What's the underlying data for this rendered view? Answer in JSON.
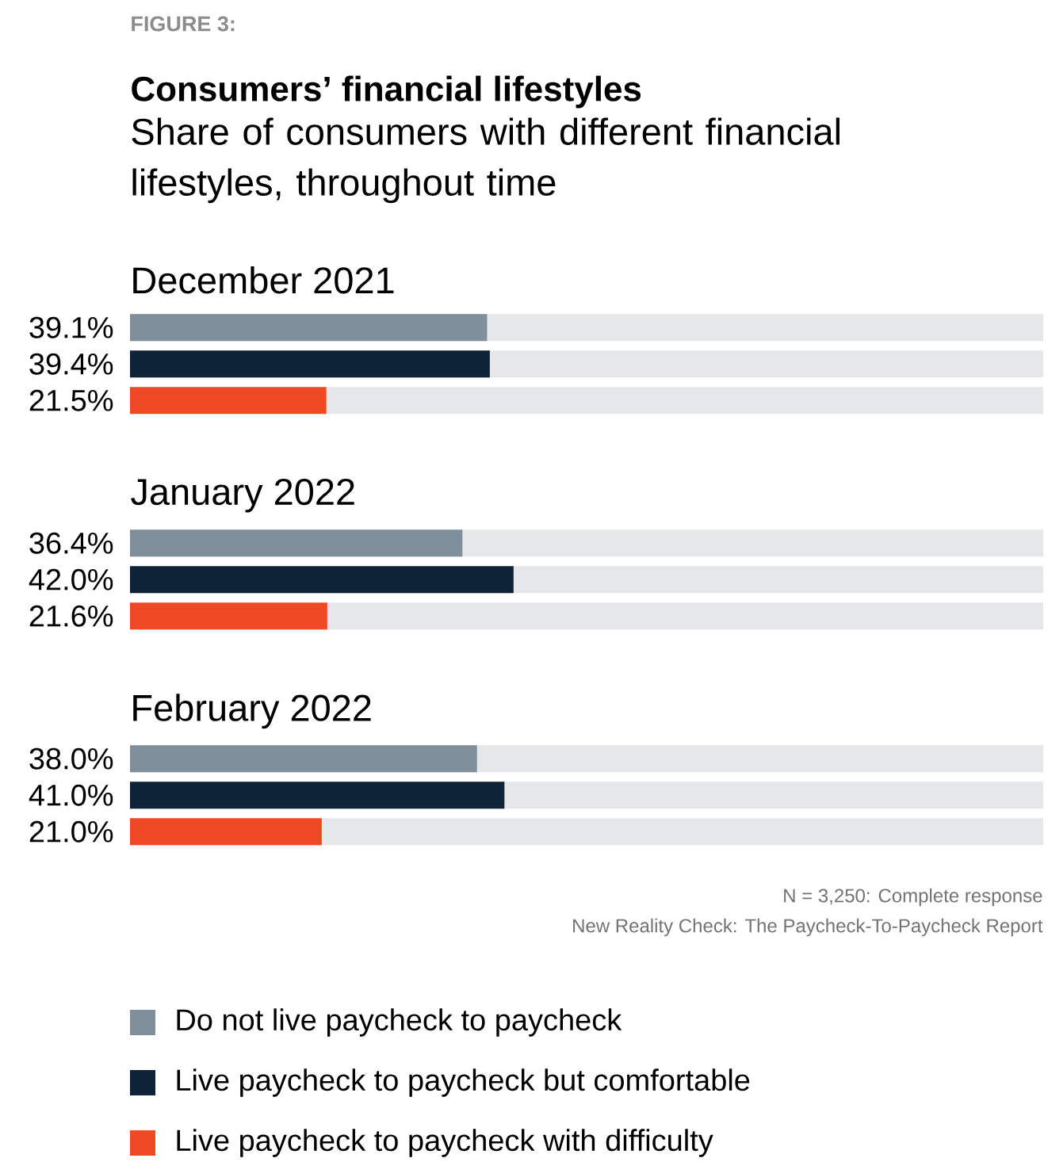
{
  "chart_data": {
    "type": "bar",
    "orientation": "horizontal",
    "title": "Consumers’ financial lifestyles",
    "subtitle": "Share of consumers with different financial lifestyles, throughout time",
    "categories": [
      "December 2021",
      "January 2022",
      "February 2022"
    ],
    "series": [
      {
        "name": "Do not live paycheck to paycheck",
        "color": "#7f8f9b",
        "values": [
          39.1,
          36.4,
          38.0
        ],
        "value_labels": [
          "39.1%",
          "36.4%",
          "38.0%"
        ]
      },
      {
        "name": "Live paycheck to paycheck but comfortable",
        "color": "#0e2238",
        "values": [
          39.4,
          42.0,
          41.0
        ],
        "value_labels": [
          "39.4%",
          "42.0%",
          "41.0%"
        ]
      },
      {
        "name": "Live paycheck to paycheck with difficulty",
        "color": "#f04a24",
        "values": [
          21.5,
          21.6,
          21.0
        ],
        "value_labels": [
          "21.5%",
          "21.6%",
          "21.0%"
        ]
      }
    ],
    "xlim": [
      0,
      100
    ],
    "legend": "bottom",
    "annotations": [
      "FIGURE 3:",
      "N = 3,250: Complete response",
      "New Reality Check: The Paycheck-To-Paycheck Report"
    ]
  }
}
